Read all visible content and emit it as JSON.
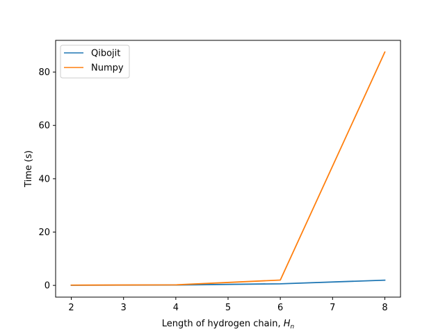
{
  "chart_data": {
    "type": "line",
    "x": [
      2,
      4,
      6,
      8
    ],
    "series": [
      {
        "name": "Qibojit",
        "color": "#1f77b4",
        "values": [
          0.05,
          0.15,
          0.6,
          1.95
        ]
      },
      {
        "name": "Numpy",
        "color": "#ff7f0e",
        "values": [
          0.1,
          0.2,
          2.0,
          87.5
        ]
      }
    ],
    "xlabel_main": "Length of hydrogen chain, ",
    "xlabel_var": "H",
    "xlabel_sub": "n",
    "ylabel": "Time (s)",
    "xlim": [
      1.7,
      8.3
    ],
    "ylim": [
      -4.4,
      91.9
    ],
    "xticks": [
      2,
      3,
      4,
      5,
      6,
      7,
      8
    ],
    "yticks": [
      0,
      20,
      40,
      60,
      80
    ],
    "legend_position": "upper left",
    "grid": false
  }
}
